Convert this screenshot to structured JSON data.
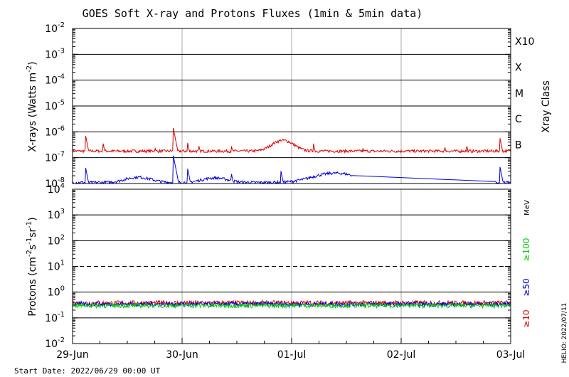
{
  "title": "GOES Soft X-ray and Protons Fluxes   (1min & 5min data)",
  "start_date": "Start Date: 2022/06/29 00:00 UT",
  "side_stamp": "HELIO: 2022/07/11",
  "colors": {
    "xray_long": "#dd0000",
    "xray_short": "#0000dd",
    "p10": "#dd0000",
    "p50": "#0000dd",
    "p100": "#00cc00",
    "grid": "#000000",
    "day_line": "#aaaaaa"
  },
  "chart_data": [
    {
      "type": "line",
      "title": "GOES Soft X-ray and Protons Fluxes   (1min & 5min data)",
      "ylabel_base": "X-rays (Watts m",
      "ylabel_sup": "-2",
      "ylabel_tail": ")",
      "yscale": "log",
      "ylim": [
        1e-08,
        0.01
      ],
      "y_ticks": [
        {
          "base": "10",
          "exp": "-2"
        },
        {
          "base": "10",
          "exp": "-3"
        },
        {
          "base": "10",
          "exp": "-4"
        },
        {
          "base": "10",
          "exp": "-5"
        },
        {
          "base": "10",
          "exp": "-6"
        },
        {
          "base": "10",
          "exp": "-7"
        },
        {
          "base": "10",
          "exp": "-8"
        }
      ],
      "right_axis_label": "Xray Class",
      "class_labels": [
        "X10",
        "X",
        "M",
        "C",
        "B"
      ],
      "x_days": [
        "29-Jun",
        "30-Jun",
        "01-Jul",
        "02-Jul",
        "03-Jul"
      ],
      "series": [
        {
          "color": "#dd0000",
          "baseline": 1.8e-07,
          "flares": [
            [
              0.12,
              7e-07
            ],
            [
              0.28,
              3.5e-07
            ],
            [
              0.55,
              2.5e-07
            ],
            [
              0.75,
              2.8e-07
            ],
            [
              0.92,
              1.4e-06
            ],
            [
              1.05,
              4e-07
            ],
            [
              1.15,
              3.5e-07
            ],
            [
              1.45,
              3e-07
            ],
            [
              1.9,
              5e-07
            ],
            [
              2.2,
              3.5e-07
            ],
            [
              2.65,
              2.5e-07
            ],
            [
              3.4,
              2.5e-07
            ],
            [
              3.6,
              2.8e-07
            ],
            [
              3.9,
              6.5e-07
            ]
          ]
        },
        {
          "color": "#0000dd",
          "baseline": 1.1e-08,
          "flares": [
            [
              0.12,
              4e-08
            ],
            [
              0.92,
              1.2e-07
            ],
            [
              1.05,
              4e-08
            ],
            [
              1.45,
              2.5e-08
            ],
            [
              1.9,
              3.5e-08
            ],
            [
              2.65,
              2.5e-08
            ],
            [
              3.9,
              5e-08
            ]
          ]
        }
      ]
    },
    {
      "type": "line",
      "ylabel_base": "Protons (cm",
      "ylabel_sup1": "-2",
      "ylabel_mid": "s",
      "ylabel_sup2": "-1",
      "ylabel_mid2": "sr",
      "ylabel_sup3": "-1",
      "ylabel_tail": ")",
      "yscale": "log",
      "ylim": [
        0.01,
        10000.0
      ],
      "y_ticks": [
        {
          "base": "10",
          "exp": "4"
        },
        {
          "base": "10",
          "exp": "3"
        },
        {
          "base": "10",
          "exp": "2"
        },
        {
          "base": "10",
          "exp": "1"
        },
        {
          "base": "10",
          "exp": "0"
        },
        {
          "base": "10",
          "exp": "-1"
        },
        {
          "base": "10",
          "exp": "-2"
        }
      ],
      "threshold": 10,
      "energy_unit": "MeV",
      "energy_labels": [
        {
          "text": "≥100",
          "color": "#00cc00"
        },
        {
          "text": "≥50",
          "color": "#0000dd"
        },
        {
          "text": "≥10",
          "color": "#dd0000"
        }
      ],
      "x_days": [
        "29-Jun",
        "30-Jun",
        "01-Jul",
        "02-Jul",
        "03-Jul"
      ],
      "series": [
        {
          "color": "#dd0000",
          "baseline": 0.38
        },
        {
          "color": "#0000dd",
          "baseline": 0.34
        },
        {
          "color": "#00cc00",
          "baseline": 0.3
        }
      ]
    }
  ]
}
